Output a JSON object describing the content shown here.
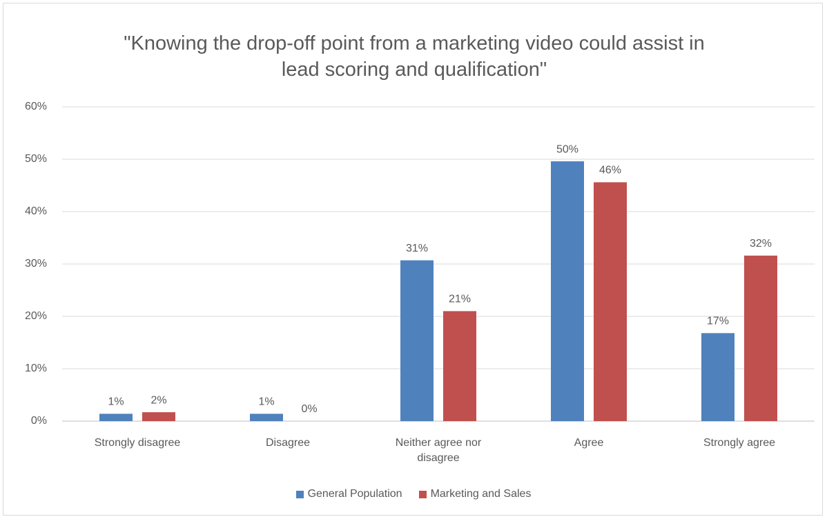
{
  "chart_data": {
    "type": "bar",
    "title": "\"Knowing the drop-off point from a marketing video could assist in lead scoring and qualification\"",
    "categories": [
      "Strongly disagree",
      "Disagree",
      "Neither agree nor disagree",
      "Agree",
      "Strongly agree"
    ],
    "series": [
      {
        "name": "General Population",
        "color": "#4f81bd",
        "values": [
          1.4,
          1.4,
          30.7,
          49.6,
          16.8
        ],
        "value_labels": [
          "1%",
          "1%",
          "31%",
          "50%",
          "17%"
        ]
      },
      {
        "name": "Marketing and Sales",
        "color": "#c0504d",
        "values": [
          1.7,
          0,
          21,
          45.6,
          31.6
        ],
        "value_labels": [
          "2%",
          "0%",
          "21%",
          "46%",
          "32%"
        ]
      }
    ],
    "ylim": [
      0,
      60
    ],
    "yticks": [
      {
        "value": 0,
        "label": "0%"
      },
      {
        "value": 10,
        "label": "10%"
      },
      {
        "value": 20,
        "label": "20%"
      },
      {
        "value": 30,
        "label": "30%"
      },
      {
        "value": 40,
        "label": "40%"
      },
      {
        "value": 50,
        "label": "50%"
      },
      {
        "value": 60,
        "label": "60%"
      }
    ],
    "grid": true,
    "legend": "bottom"
  }
}
